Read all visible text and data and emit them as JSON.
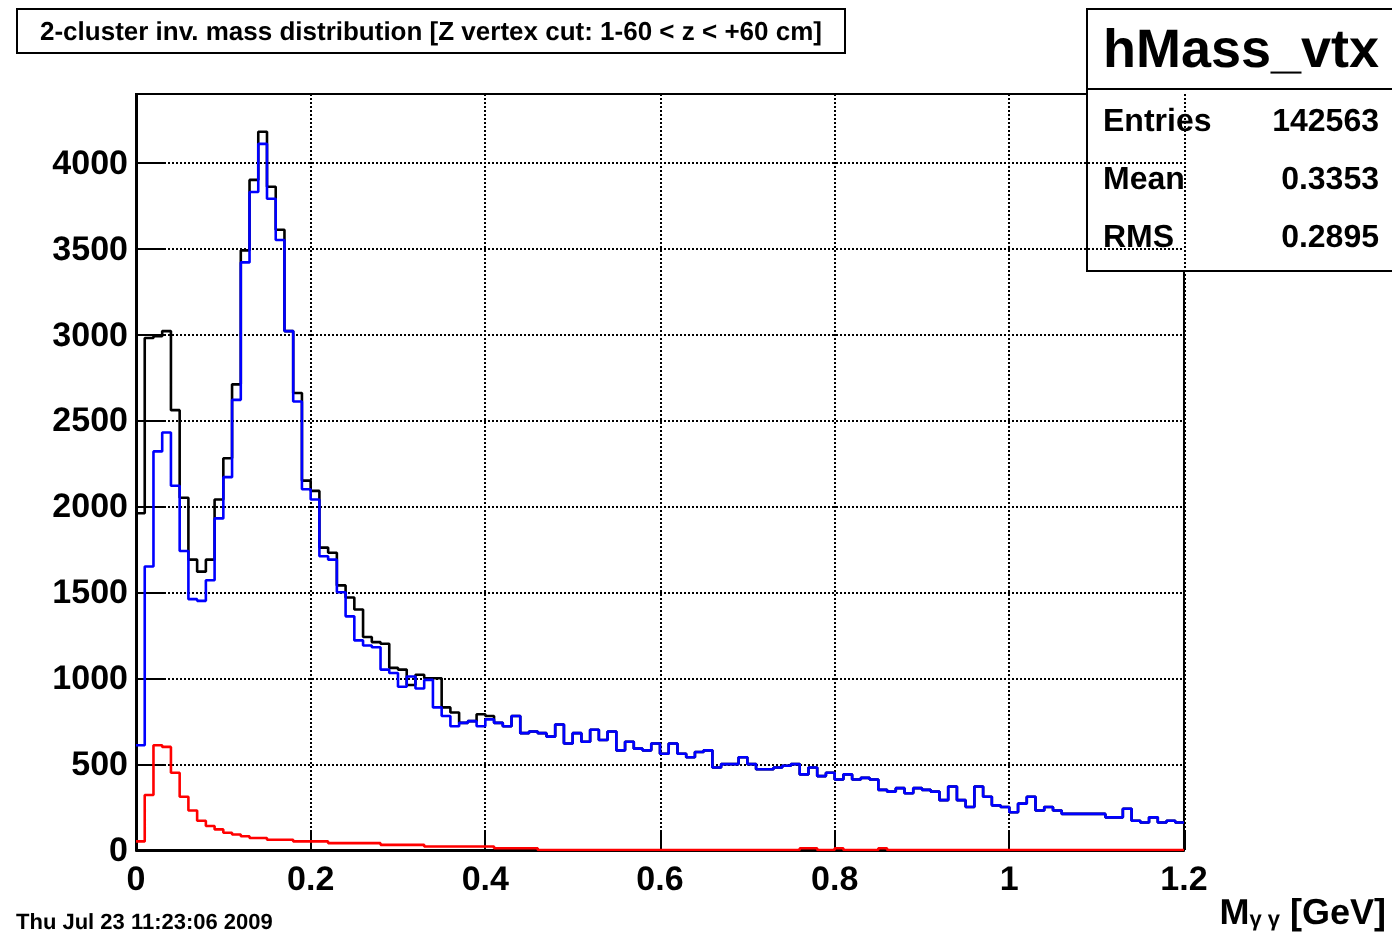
{
  "chart_data": {
    "type": "histogram",
    "title": "2-cluster inv. mass distribution [Z vertex cut: 1-60 < z < +60 cm]",
    "xlabel": "M$_{γ γ}$ [GeV]",
    "annotations": [
      "hMass_vtx",
      "Entries 142563",
      "Mean 0.3353",
      "RMS 0.2895",
      "Thu Jul 23 11:23:06 2009"
    ],
    "bins": [
      0,
      0.01,
      0.02,
      0.03,
      0.04,
      0.05,
      0.06,
      0.07,
      0.08,
      0.09,
      0.1,
      0.11,
      0.12,
      0.13,
      0.14,
      0.15,
      0.16,
      0.17,
      0.18,
      0.19,
      0.2,
      0.21,
      0.22,
      0.23,
      0.24,
      0.25,
      0.26,
      0.27,
      0.28,
      0.29,
      0.3,
      0.31,
      0.32,
      0.33,
      0.34,
      0.35,
      0.36,
      0.37,
      0.38,
      0.39,
      0.4,
      0.41,
      0.42,
      0.43,
      0.44,
      0.45,
      0.46,
      0.47,
      0.48,
      0.49,
      0.5,
      0.51,
      0.52,
      0.53,
      0.54,
      0.55,
      0.56,
      0.57,
      0.58,
      0.59,
      0.6,
      0.61,
      0.62,
      0.63,
      0.64,
      0.65,
      0.66,
      0.67,
      0.68,
      0.69,
      0.7,
      0.71,
      0.72,
      0.73,
      0.74,
      0.75,
      0.76,
      0.77,
      0.78,
      0.79,
      0.8,
      0.81,
      0.82,
      0.83,
      0.84,
      0.85,
      0.86,
      0.87,
      0.88,
      0.89,
      0.9,
      0.91,
      0.92,
      0.93,
      0.94,
      0.95,
      0.96,
      0.97,
      0.98,
      0.99,
      1,
      1.01,
      1.02,
      1.03,
      1.04,
      1.05,
      1.06,
      1.07,
      1.08,
      1.09,
      1.1,
      1.11,
      1.12,
      1.13,
      1.14,
      1.15,
      1.16,
      1.17,
      1.18,
      1.19,
      1.2
    ],
    "series": [
      {
        "color": "#000000",
        "values": [
          1960,
          2980,
          2990,
          3020,
          2560,
          2050,
          1690,
          1620,
          1690,
          2040,
          2280,
          2710,
          3490,
          3900,
          4180,
          3860,
          3610,
          3020,
          2660,
          2150,
          2090,
          1760,
          1730,
          1540,
          1470,
          1400,
          1240,
          1210,
          1200,
          1060,
          1050,
          960,
          1020,
          1000,
          1000,
          830,
          800,
          740,
          750,
          790,
          780,
          740,
          720,
          780,
          680,
          690,
          680,
          660,
          730,
          620,
          680,
          630,
          700,
          640,
          690,
          580,
          630,
          590,
          580,
          620,
          560,
          620,
          560,
          540,
          570,
          580,
          480,
          500,
          500,
          540,
          500,
          470,
          470,
          480,
          490,
          500,
          440,
          480,
          430,
          450,
          410,
          440,
          410,
          420,
          410,
          350,
          340,
          360,
          330,
          360,
          350,
          340,
          290,
          370,
          290,
          250,
          370,
          310,
          260,
          250,
          220,
          270,
          310,
          230,
          250,
          230,
          210,
          210,
          210,
          210,
          210,
          190,
          190,
          240,
          170,
          160,
          190,
          160,
          170,
          160
        ]
      },
      {
        "color": "#0000ff",
        "values": [
          610,
          1650,
          2320,
          2430,
          2120,
          1740,
          1460,
          1450,
          1570,
          1930,
          2170,
          2620,
          3420,
          3830,
          4110,
          3790,
          3550,
          3020,
          2610,
          2100,
          2040,
          1710,
          1690,
          1500,
          1360,
          1220,
          1190,
          1180,
          1050,
          1030,
          950,
          1010,
          940,
          990,
          830,
          780,
          720,
          740,
          750,
          720,
          760,
          740,
          720,
          780,
          680,
          690,
          680,
          660,
          730,
          620,
          680,
          630,
          700,
          640,
          690,
          580,
          630,
          590,
          580,
          620,
          560,
          620,
          560,
          540,
          570,
          580,
          480,
          500,
          500,
          540,
          500,
          470,
          470,
          480,
          490,
          500,
          440,
          480,
          430,
          450,
          410,
          440,
          410,
          420,
          410,
          350,
          340,
          360,
          330,
          360,
          350,
          340,
          290,
          370,
          290,
          250,
          370,
          310,
          260,
          250,
          220,
          270,
          310,
          230,
          250,
          230,
          210,
          210,
          210,
          210,
          210,
          190,
          190,
          240,
          170,
          160,
          190,
          160,
          170,
          160
        ]
      },
      {
        "color": "#ff0000",
        "values": [
          50,
          320,
          610,
          600,
          450,
          310,
          230,
          170,
          140,
          120,
          100,
          90,
          80,
          70,
          70,
          60,
          60,
          60,
          50,
          50,
          50,
          50,
          40,
          40,
          40,
          40,
          40,
          40,
          30,
          30,
          30,
          30,
          30,
          20,
          20,
          20,
          20,
          20,
          20,
          20,
          20,
          10,
          10,
          10,
          10,
          10,
          0,
          0,
          0,
          0,
          0,
          0,
          0,
          0,
          0,
          0,
          0,
          0,
          0,
          0,
          0,
          0,
          0,
          0,
          0,
          0,
          0,
          0,
          0,
          0,
          0,
          0,
          0,
          0,
          0,
          0,
          10,
          10,
          0,
          0,
          10,
          0,
          0,
          0,
          0,
          10,
          0,
          0,
          0,
          0,
          0,
          0,
          0,
          0,
          0,
          0,
          0,
          0,
          0,
          0,
          0,
          0,
          0,
          0,
          0,
          0,
          0,
          0,
          0,
          0,
          0,
          0,
          0,
          0,
          0,
          0,
          0,
          0,
          0,
          0
        ]
      }
    ],
    "xlim": [
      0,
      1.2
    ],
    "xticks": [
      0,
      0.2,
      0.4,
      0.6,
      0.8,
      1,
      1.2
    ],
    "ylim": [
      0,
      4400
    ],
    "yticks": [
      0,
      500,
      1000,
      1500,
      2000,
      2500,
      3000,
      3500,
      4000
    ],
    "grid": true
  }
}
